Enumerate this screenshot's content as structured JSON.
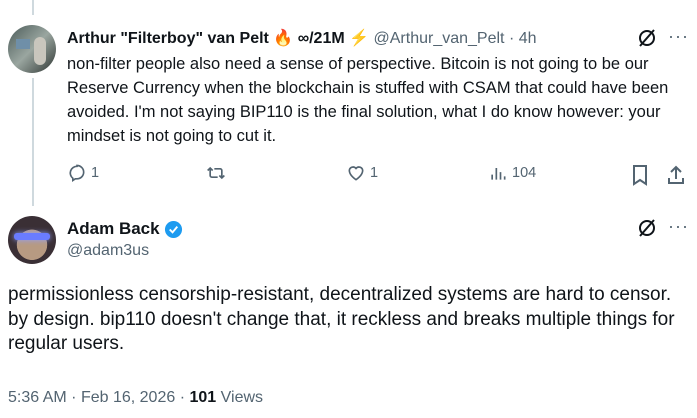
{
  "reply": {
    "author_name": "Arthur \"Filterboy\" van Pelt",
    "emoji_fire": "🔥",
    "name_suffix": "∞/21M",
    "emoji_bolt": "⚡",
    "handle": "@Arthur_van_Pelt",
    "time": "4h",
    "text": "non-filter people also need a sense of perspective. Bitcoin is not going to be our Reserve Currency when the blockchain is stuffed with CSAM that could have been avoided. I'm not saying BIP110 is the final solution, what I do know however: your mindset is not going to cut it.",
    "replies": "1",
    "likes": "1",
    "views": "104"
  },
  "main": {
    "author_name": "Adam Back",
    "handle": "@adam3us",
    "verified_color": "#1d9bf0",
    "text": "permissionless censorship-resistant, decentralized systems are hard to censor. by design. bip110 doesn't change that, it reckless and breaks multiple things for regular users.",
    "time": "5:36 AM",
    "date": "Feb 16, 2026",
    "views_count": "101",
    "views_label": "Views"
  },
  "separator": "·"
}
